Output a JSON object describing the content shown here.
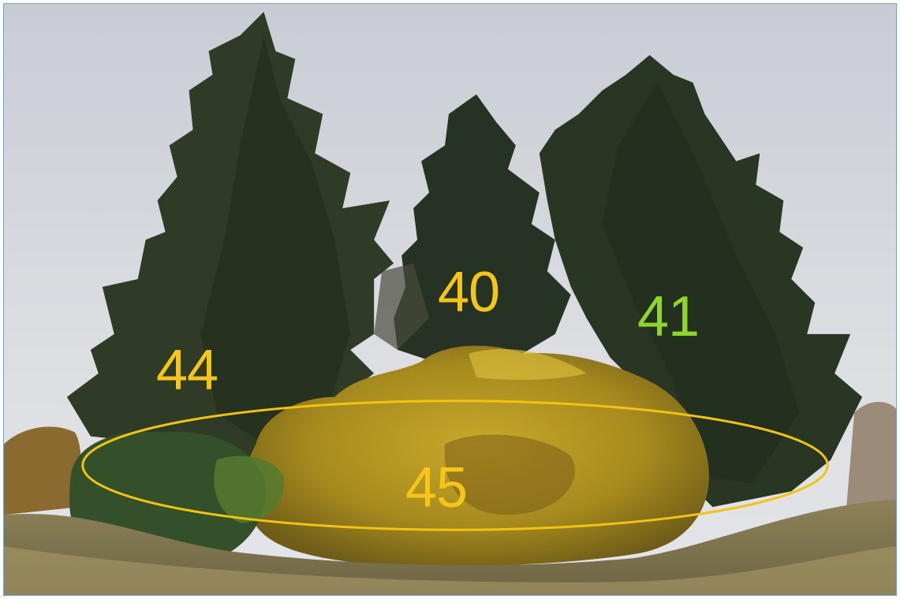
{
  "photo": {
    "description_icon": "photo-trees-autumn",
    "colors": {
      "sky": "#d6d8dd",
      "conifer": "#2c3a24",
      "shrub": "#b89a1c",
      "grass": "#9a8a5a",
      "label_yellow": "#f5c518",
      "label_green": "#8fd62a",
      "ellipse": "#f2c312",
      "frame": "#7a9ed6"
    }
  },
  "labels": [
    {
      "id": "40",
      "text": "40",
      "color": "#f5c518"
    },
    {
      "id": "41",
      "text": "41",
      "color": "#8fd62a"
    },
    {
      "id": "44",
      "text": "44",
      "color": "#f5c518"
    },
    {
      "id": "45",
      "text": "45",
      "color": "#f5c518"
    }
  ]
}
